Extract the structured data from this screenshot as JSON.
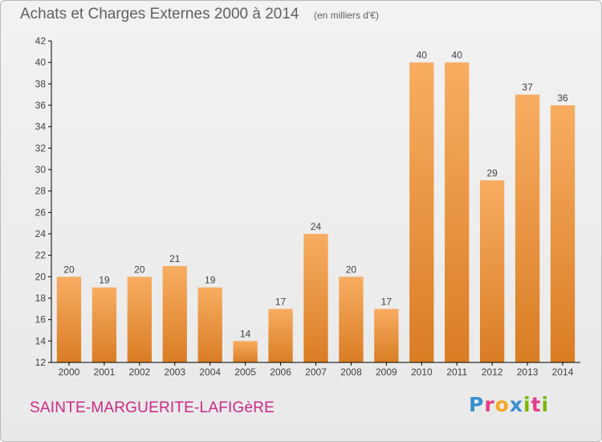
{
  "header": {
    "title": "Achats et Charges Externes 2000 à 2014",
    "unit": "(en milliers d'€)"
  },
  "footer": {
    "commune": "SAINTE-MARGUERITE-LAFIGèRE",
    "brand": "Proxiti",
    "brand_letters": [
      {
        "ch": "P",
        "color": "#3a8fd0"
      },
      {
        "ch": "r",
        "color": "#e23d8a"
      },
      {
        "ch": "o",
        "color": "#f5a623"
      },
      {
        "ch": "x",
        "color": "#3a8fd0"
      },
      {
        "ch": "i",
        "color": "#7ab800"
      },
      {
        "ch": "t",
        "color": "#e23d8a"
      },
      {
        "ch": "i",
        "color": "#7ab800"
      }
    ]
  },
  "colors": {
    "bar_light": "#f8ad62",
    "bar_dark": "#d97d24",
    "label_text": "#404040",
    "axis": "#000000",
    "grid": "#d0d0d0"
  },
  "chart_data": {
    "type": "bar",
    "title": "Achats et Charges Externes 2000 à 2014",
    "ylabel": "",
    "xlabel": "",
    "categories": [
      "2000",
      "2001",
      "2002",
      "2003",
      "2004",
      "2005",
      "2006",
      "2007",
      "2008",
      "2009",
      "2010",
      "2011",
      "2012",
      "2013",
      "2014"
    ],
    "values": [
      20,
      19,
      20,
      21,
      19,
      14,
      17,
      24,
      20,
      17,
      40,
      40,
      29,
      37,
      36
    ],
    "ylim": [
      12,
      42
    ],
    "yticks": [
      12,
      14,
      16,
      18,
      20,
      22,
      24,
      26,
      28,
      30,
      32,
      34,
      36,
      38,
      40,
      42
    ],
    "grid": false,
    "legend": "none"
  }
}
